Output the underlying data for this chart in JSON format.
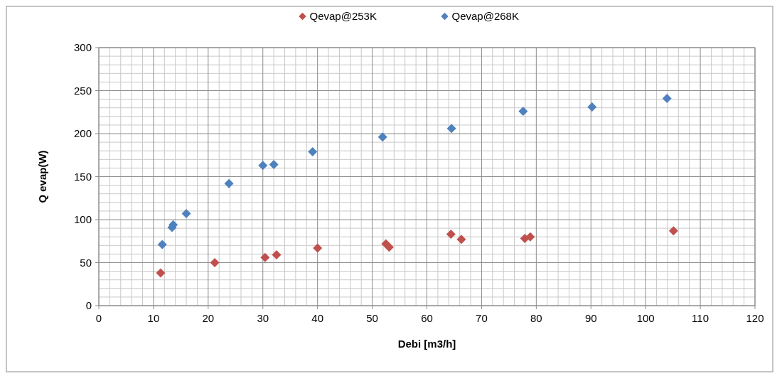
{
  "chart_data": {
    "type": "scatter",
    "xlabel": "Debi [m3/h]",
    "ylabel": "Q evap(W)",
    "xlim": [
      0,
      120
    ],
    "xticks": [
      0,
      10,
      20,
      30,
      40,
      50,
      60,
      70,
      80,
      90,
      100,
      110,
      120
    ],
    "ylim": [
      0,
      300
    ],
    "yticks": [
      0,
      50,
      100,
      150,
      200,
      250,
      300
    ],
    "grid": true,
    "legend": "top",
    "marker": "diamond",
    "series": [
      {
        "name": "Qevap@253K",
        "color": "#c0504d",
        "x": [
          11.3,
          21.2,
          30.4,
          32.5,
          40.0,
          52.5,
          53.1,
          64.4,
          66.3,
          77.9,
          78.9,
          105.1
        ],
        "values": [
          38,
          50,
          56,
          59,
          67,
          72,
          68,
          83,
          77,
          78,
          80,
          87
        ]
      },
      {
        "name": "Qevap@268K",
        "color": "#4f81bd",
        "x": [
          11.6,
          13.4,
          13.6,
          16.0,
          23.8,
          30.0,
          32.0,
          39.1,
          51.9,
          64.5,
          77.6,
          90.2,
          103.9
        ],
        "values": [
          71,
          91,
          94,
          107,
          142,
          163,
          164,
          179,
          196,
          206,
          226,
          231,
          241
        ]
      }
    ]
  }
}
